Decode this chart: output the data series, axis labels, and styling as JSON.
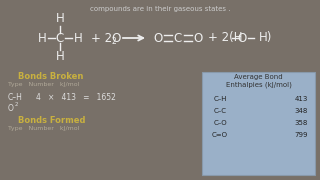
{
  "bg_color": "#787068",
  "top_text": "compounds are in their gaseous states .",
  "top_text_color": "#cccccc",
  "equation_color": "#eeeeee",
  "bonds_broken_title": "Bonds Broken",
  "bonds_broken_color": "#c8b040",
  "bonds_formed_title": "Bonds Formed",
  "bonds_formed_color": "#c8b040",
  "header_color": "#b0a898",
  "data_color": "#dddddd",
  "table_bg": "#9ab0c8",
  "table_title_color": "#333333",
  "table_row_color": "#222222",
  "table_rows": [
    [
      "C–H",
      "413"
    ],
    [
      "C–C",
      "348"
    ],
    [
      "C–O",
      "358"
    ],
    [
      "C=O",
      "799"
    ]
  ]
}
